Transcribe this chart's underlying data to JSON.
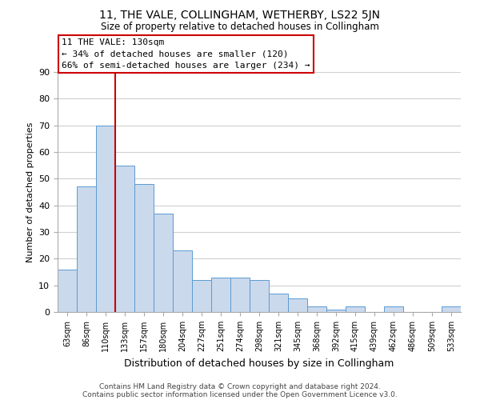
{
  "title": "11, THE VALE, COLLINGHAM, WETHERBY, LS22 5JN",
  "subtitle": "Size of property relative to detached houses in Collingham",
  "xlabel": "Distribution of detached houses by size in Collingham",
  "ylabel": "Number of detached properties",
  "footer_line1": "Contains HM Land Registry data © Crown copyright and database right 2024.",
  "footer_line2": "Contains public sector information licensed under the Open Government Licence v3.0.",
  "bin_labels": [
    "63sqm",
    "86sqm",
    "110sqm",
    "133sqm",
    "157sqm",
    "180sqm",
    "204sqm",
    "227sqm",
    "251sqm",
    "274sqm",
    "298sqm",
    "321sqm",
    "345sqm",
    "368sqm",
    "392sqm",
    "415sqm",
    "439sqm",
    "462sqm",
    "486sqm",
    "509sqm",
    "533sqm"
  ],
  "bar_values": [
    16,
    47,
    70,
    55,
    48,
    37,
    23,
    12,
    13,
    13,
    12,
    7,
    5,
    2,
    1,
    2,
    0,
    2,
    0,
    0,
    2
  ],
  "bar_color": "#cad9ec",
  "bar_edge_color": "#5b9bd5",
  "reference_line_color": "#cc0000",
  "annotation_text": "11 THE VALE: 130sqm\n← 34% of detached houses are smaller (120)\n66% of semi-detached houses are larger (234) →",
  "ylim": [
    0,
    90
  ],
  "yticks": [
    0,
    10,
    20,
    30,
    40,
    50,
    60,
    70,
    80,
    90
  ],
  "background_color": "#ffffff",
  "grid_color": "#d0d0d0",
  "ann_box_edge_color": "#cc0000"
}
